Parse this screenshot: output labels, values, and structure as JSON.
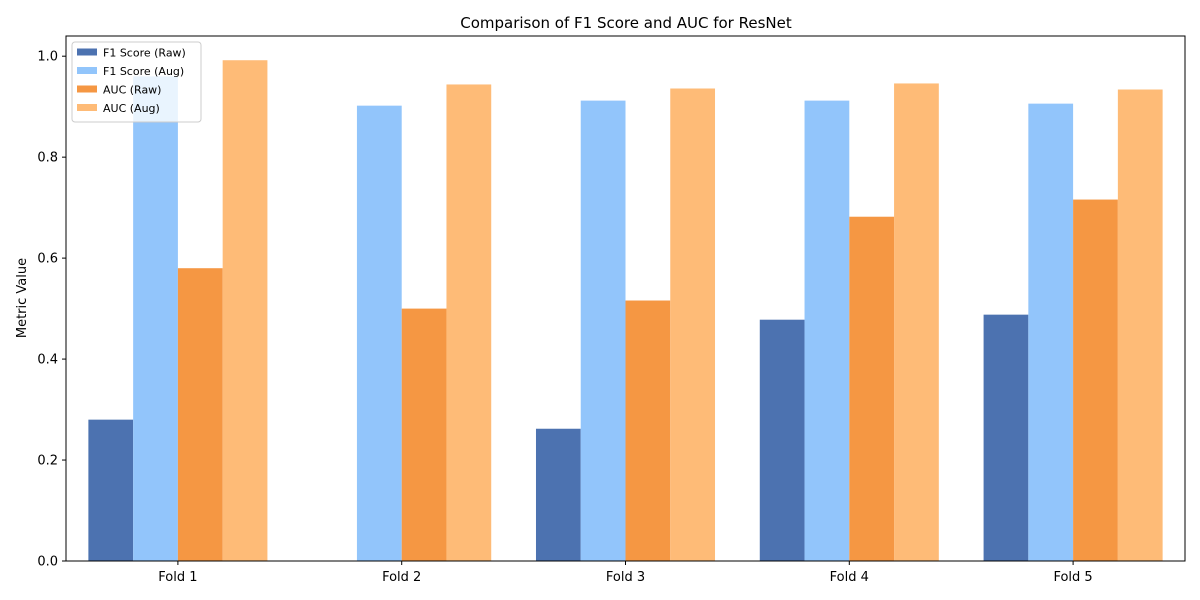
{
  "chart_data": {
    "type": "bar",
    "title": "Comparison of F1 Score and AUC for ResNet",
    "xlabel": "",
    "ylabel": "Metric Value",
    "categories": [
      "Fold 1",
      "Fold 2",
      "Fold 3",
      "Fold 4",
      "Fold 5"
    ],
    "ylim": [
      0,
      1.04
    ],
    "yticks": [
      "0.0",
      "0.2",
      "0.4",
      "0.6",
      "0.8",
      "1.0"
    ],
    "grid": false,
    "legend_position": "top-left",
    "series": [
      {
        "name": "F1 Score (Raw)",
        "color": "#4c72b0",
        "values": [
          0.28,
          0.0,
          0.262,
          0.478,
          0.488
        ]
      },
      {
        "name": "F1 Score (Aug)",
        "color": "#92c5fb",
        "values": [
          0.96,
          0.902,
          0.912,
          0.912,
          0.906
        ]
      },
      {
        "name": "AUC (Raw)",
        "color": "#f59743",
        "values": [
          0.58,
          0.5,
          0.516,
          0.682,
          0.716
        ]
      },
      {
        "name": "AUC (Aug)",
        "color": "#febb77",
        "values": [
          0.992,
          0.944,
          0.936,
          0.946,
          0.934
        ]
      }
    ]
  }
}
